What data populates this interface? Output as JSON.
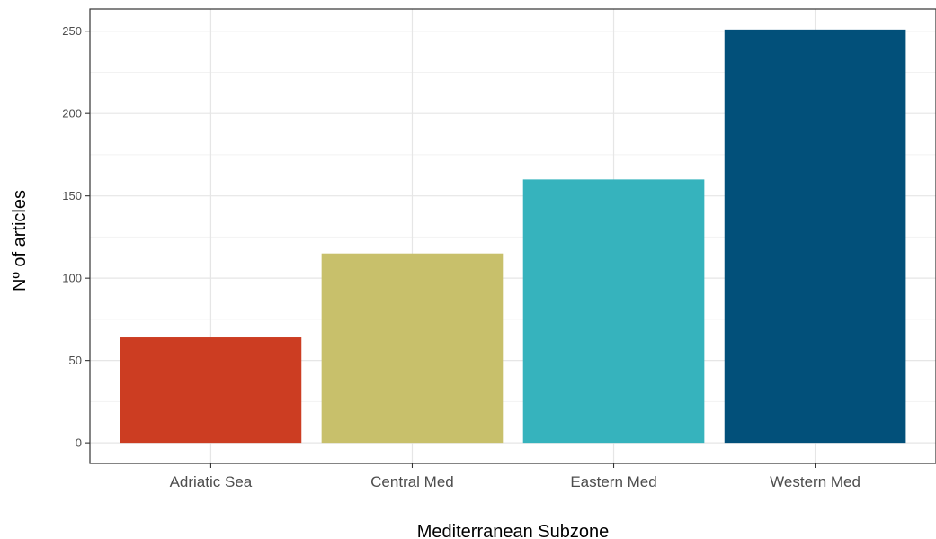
{
  "chart_data": {
    "type": "bar",
    "categories": [
      "Adriatic Sea",
      "Central Med",
      "Eastern Med",
      "Western Med"
    ],
    "values": [
      64,
      115,
      160,
      251
    ],
    "colors": [
      "#cc3d22",
      "#c8c06b",
      "#36b3bd",
      "#02507a"
    ],
    "title": "",
    "xlabel": "Mediterranean Subzone",
    "ylabel": "Nº of articles",
    "ylim": [
      -12.5,
      263.5
    ],
    "yticks": [
      0,
      50,
      100,
      150,
      200,
      250
    ],
    "grid": true,
    "legend": "none"
  }
}
